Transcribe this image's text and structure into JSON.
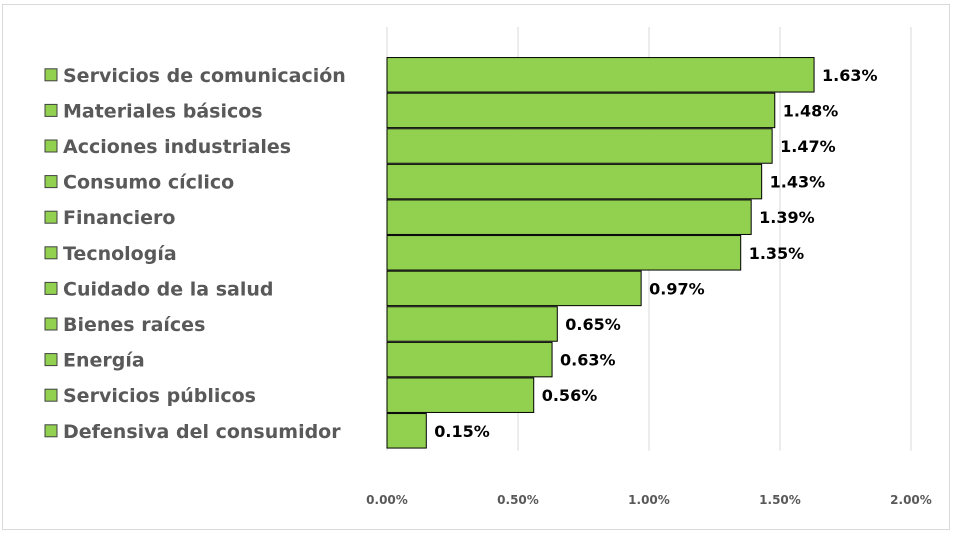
{
  "chart_data": {
    "type": "bar",
    "orientation": "horizontal",
    "categories": [
      "Servicios de comunicación",
      "Materiales básicos",
      "Acciones industriales",
      "Consumo cíclico",
      "Financiero",
      "Tecnología",
      "Cuidado de la salud",
      "Bienes raíces",
      "Energía",
      "Servicios públicos",
      "Defensiva del consumidor"
    ],
    "values": [
      1.63,
      1.48,
      1.47,
      1.43,
      1.39,
      1.35,
      0.97,
      0.65,
      0.63,
      0.56,
      0.15
    ],
    "value_labels": [
      "1.63%",
      "1.48%",
      "1.47%",
      "1.43%",
      "1.39%",
      "1.35%",
      "0.97%",
      "0.65%",
      "0.63%",
      "0.56%",
      "0.15%"
    ],
    "x_ticks": [
      0,
      0.5,
      1.0,
      1.5,
      2.0
    ],
    "x_tick_labels": [
      "0.00%",
      "0.50%",
      "1.00%",
      "1.50%",
      "2.00%"
    ],
    "xlim": [
      0,
      2.0
    ],
    "title": "",
    "xlabel": "",
    "ylabel": "",
    "grid": "vertical",
    "legend": "left",
    "colors": {
      "bar": "#92d050",
      "bar_border": "#000000",
      "grid": "#d9d9d9",
      "label": "#595959"
    }
  }
}
